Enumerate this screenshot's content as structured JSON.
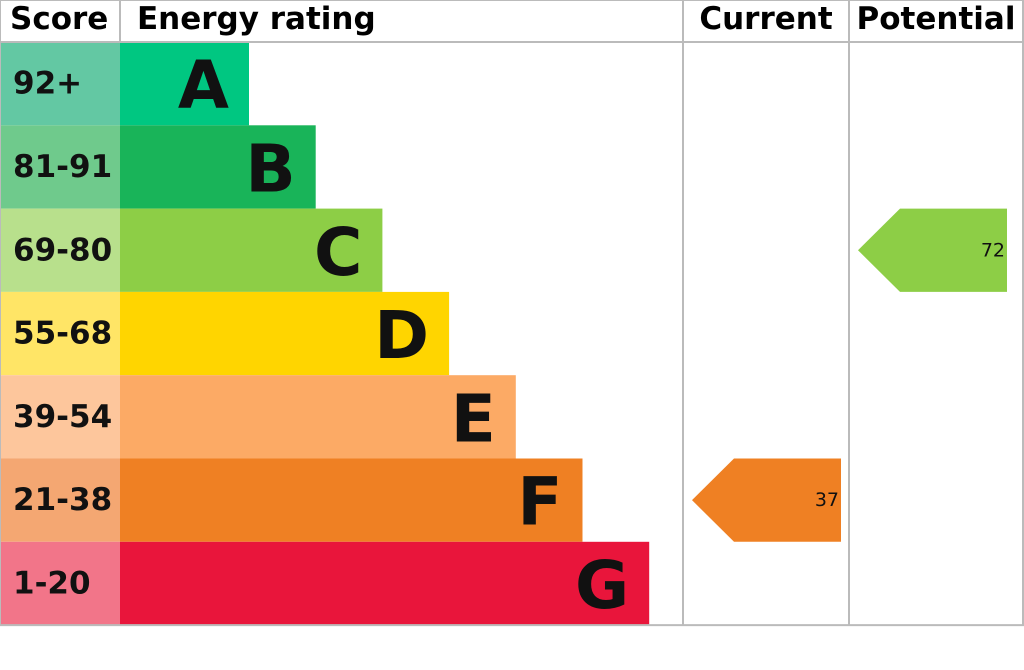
{
  "headers": {
    "score": "Score",
    "rating": "Energy rating",
    "current": "Current",
    "potential": "Potential"
  },
  "bands": [
    {
      "score": "92+",
      "letter": "A",
      "color": "#00c781",
      "score_color": "#63c8a3"
    },
    {
      "score": "81-91",
      "letter": "B",
      "color": "#19b459",
      "score_color": "#6fca8c"
    },
    {
      "score": "69-80",
      "letter": "C",
      "color": "#8dce46",
      "score_color": "#b8e08c"
    },
    {
      "score": "55-68",
      "letter": "D",
      "color": "#ffd500",
      "score_color": "#ffe566"
    },
    {
      "score": "39-54",
      "letter": "E",
      "color": "#fcaa65",
      "score_color": "#fdc69c"
    },
    {
      "score": "21-38",
      "letter": "F",
      "color": "#ef8023",
      "score_color": "#f4a772"
    },
    {
      "score": "1-20",
      "letter": "G",
      "color": "#e9153b",
      "score_color": "#f27589"
    }
  ],
  "current": 37,
  "potential": 72
}
